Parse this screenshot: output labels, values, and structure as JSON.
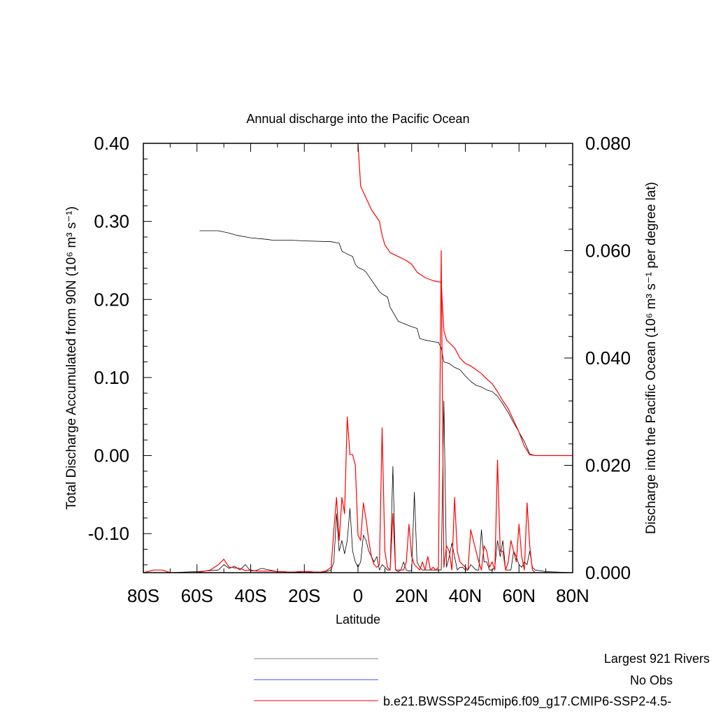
{
  "chart_data": {
    "type": "line",
    "title": "Annual discharge into the Pacific Ocean",
    "xlabel": "Latitude",
    "ylabel_left": "Total Discharge Accumulated from 90N (10⁶ m³ s⁻¹)",
    "ylabel_right": "Discharge into the Pacific Ocean (10⁶ m³ s⁻¹ per degree lat)",
    "xlim": [
      -80,
      80
    ],
    "ylim_left": [
      -0.15,
      0.4
    ],
    "ylim_right": [
      0.0,
      0.08
    ],
    "x_ticks": [
      -80,
      -60,
      -40,
      -20,
      0,
      20,
      40,
      60,
      80
    ],
    "x_tick_labels": [
      "80S",
      "60S",
      "40S",
      "20S",
      "0",
      "20N",
      "40N",
      "60N",
      "80N"
    ],
    "y_left_ticks": [
      -0.1,
      0.0,
      0.1,
      0.2,
      0.3,
      0.4
    ],
    "y_left_tick_labels": [
      "-0.10",
      "0.00",
      "0.10",
      "0.20",
      "0.30",
      "0.40"
    ],
    "y_right_ticks": [
      0.0,
      0.02,
      0.04,
      0.06,
      0.08
    ],
    "y_right_tick_labels": [
      "0.000",
      "0.020",
      "0.040",
      "0.060",
      "0.080"
    ],
    "grid": false,
    "legend_placement": "bottom-right",
    "series": [
      {
        "name": "Largest 921 Rivers",
        "color": "#000000",
        "axis": "left",
        "kind": "accumulated",
        "x": [
          -59,
          -52,
          -48,
          -45,
          -40,
          -34,
          -32,
          -26,
          -20,
          -10,
          -7,
          -6,
          -5,
          -2,
          -1,
          0,
          2,
          3,
          4,
          6,
          8,
          9,
          11,
          12,
          15,
          20,
          22,
          23,
          25,
          28,
          30,
          31,
          32,
          34,
          36,
          38,
          40,
          42,
          44,
          46,
          48,
          50,
          52,
          54,
          56,
          58,
          60,
          62,
          64,
          66,
          80
        ],
        "y": [
          0.288,
          0.288,
          0.285,
          0.282,
          0.279,
          0.277,
          0.276,
          0.276,
          0.275,
          0.274,
          0.272,
          0.262,
          0.26,
          0.255,
          0.245,
          0.241,
          0.238,
          0.235,
          0.23,
          0.22,
          0.21,
          0.207,
          0.203,
          0.19,
          0.172,
          0.165,
          0.163,
          0.15,
          0.148,
          0.146,
          0.145,
          0.138,
          0.12,
          0.118,
          0.113,
          0.11,
          0.102,
          0.095,
          0.09,
          0.088,
          0.084,
          0.082,
          0.076,
          0.066,
          0.055,
          0.042,
          0.03,
          0.018,
          0.002,
          0.0,
          0.0
        ]
      },
      {
        "name": "b.e21.BWSSP245cmip6.f09_g17.CMIP6-SSP2-4.5-",
        "color": "#ff0000",
        "axis": "left",
        "kind": "accumulated",
        "x": [
          0,
          1,
          3,
          5,
          8,
          9,
          10,
          12,
          15,
          18,
          20,
          22,
          25,
          28,
          31,
          32,
          33,
          36,
          38,
          40,
          42,
          44,
          46,
          48,
          50,
          52,
          54,
          56,
          58,
          60,
          62,
          64,
          66,
          80
        ],
        "y": [
          0.4,
          0.345,
          0.33,
          0.315,
          0.3,
          0.282,
          0.27,
          0.26,
          0.255,
          0.25,
          0.245,
          0.235,
          0.228,
          0.224,
          0.222,
          0.16,
          0.148,
          0.138,
          0.125,
          0.118,
          0.115,
          0.11,
          0.105,
          0.098,
          0.092,
          0.082,
          0.07,
          0.06,
          0.045,
          0.03,
          0.012,
          0.001,
          0.0,
          0.0
        ]
      },
      {
        "name": "Largest 921 Rivers",
        "color": "#000000",
        "axis": "right",
        "kind": "per-degree",
        "x": [
          -80,
          -70,
          -60,
          -52,
          -50,
          -48,
          -46,
          -44,
          -42,
          -40,
          -38,
          -36,
          -34,
          -32,
          -30,
          -28,
          -26,
          -24,
          -22,
          -20,
          -18,
          -16,
          -14,
          -12,
          -10,
          -9,
          -8,
          -7,
          -6,
          -5,
          -4,
          -3,
          -2,
          -1,
          0,
          1,
          2,
          3,
          4,
          5,
          6,
          7,
          8,
          9,
          10,
          11,
          12,
          13,
          14,
          15,
          16,
          17,
          18,
          19,
          20,
          21,
          22,
          23,
          24,
          25,
          26,
          27,
          28,
          29,
          30,
          31,
          32,
          33,
          34,
          35,
          36,
          37,
          38,
          39,
          40,
          41,
          42,
          43,
          44,
          45,
          46,
          47,
          48,
          49,
          50,
          51,
          52,
          53,
          54,
          55,
          56,
          57,
          58,
          59,
          60,
          61,
          62,
          63,
          64,
          65,
          66,
          70,
          80
        ],
        "y": [
          0.0,
          0.0,
          0.0002,
          0.0005,
          0.0015,
          0.0008,
          0.0012,
          0.0005,
          0.0015,
          0.0003,
          0.0004,
          0.0008,
          0.0006,
          0.0004,
          0.0002,
          0.0002,
          0.0001,
          0.0001,
          0.0001,
          0.0002,
          0.0001,
          0.0001,
          0.0001,
          0.0002,
          0.0005,
          0.002,
          0.011,
          0.004,
          0.006,
          0.0035,
          0.006,
          0.012,
          0.004,
          0.002,
          0.001,
          0.002,
          0.007,
          0.006,
          0.004,
          0.003,
          0.002,
          0.003,
          0.0005,
          0.0015,
          0.001,
          0.0005,
          0.0005,
          0.0198,
          0.0005,
          0.0002,
          0.0005,
          0.002,
          0.0005,
          0.0003,
          0.0005,
          0.015,
          0.002,
          0.001,
          0.0005,
          0.0005,
          0.0005,
          0.0005,
          0.0005,
          0.0005,
          0.0005,
          0.0005,
          0.032,
          0.001,
          0.003,
          0.0055,
          0.003,
          0.0005,
          0.001,
          0.001,
          0.0005,
          0.0005,
          0.0015,
          0.001,
          0.0005,
          0.0005,
          0.008,
          0.002,
          0.002,
          0.0005,
          0.0005,
          0.001,
          0.006,
          0.003,
          0.006,
          0.0005,
          0.0005,
          0.0005,
          0.004,
          0.003,
          0.0015,
          0.001,
          0.002,
          0.0015,
          0.004,
          0.001,
          0.0005,
          0.0002,
          0.0
        ]
      },
      {
        "name": "b.e21.BWSSP245cmip6.f09_g17.CMIP6-SSP2-4.5-",
        "color": "#ff0000",
        "axis": "right",
        "kind": "per-degree",
        "x": [
          -80,
          -76,
          -73,
          -70,
          -65,
          -60,
          -55,
          -52,
          -51,
          -50,
          -48,
          -47,
          -46,
          -44,
          -42,
          -40,
          -38,
          -36,
          -34,
          -32,
          -30,
          -28,
          -26,
          -24,
          -22,
          -20,
          -18,
          -16,
          -14,
          -12,
          -10,
          -9,
          -8,
          -7,
          -6,
          -5,
          -4,
          -3,
          -2,
          -1,
          0,
          1,
          2,
          3,
          4,
          5,
          6,
          7,
          8,
          9,
          10,
          11,
          12,
          13,
          14,
          15,
          16,
          17,
          18,
          19,
          20,
          21,
          22,
          23,
          24,
          25,
          26,
          27,
          28,
          29,
          30,
          31,
          32,
          33,
          34,
          35,
          36,
          37,
          38,
          39,
          40,
          41,
          42,
          43,
          44,
          45,
          46,
          47,
          48,
          49,
          50,
          51,
          52,
          53,
          54,
          55,
          56,
          57,
          58,
          59,
          60,
          61,
          62,
          63,
          64,
          65,
          66,
          70,
          80
        ],
        "y": [
          0.0,
          0.0005,
          0.0005,
          0.0,
          0.0,
          0.0,
          0.0005,
          0.0015,
          0.002,
          0.0025,
          0.001,
          0.001,
          0.0009,
          0.0008,
          0.0004,
          0.0005,
          0.0003,
          0.0003,
          0.0003,
          0.0003,
          0.0002,
          0.0002,
          0.0001,
          0.0001,
          0.0002,
          0.0002,
          0.0002,
          0.0001,
          0.0001,
          0.0003,
          0.001,
          0.008,
          0.014,
          0.006,
          0.014,
          0.011,
          0.029,
          0.022,
          0.022,
          0.02,
          0.007,
          0.006,
          0.013,
          0.01,
          0.006,
          0.003,
          0.0015,
          0.001,
          0.0015,
          0.027,
          0.004,
          0.001,
          0.0005,
          0.011,
          0.0005,
          0.0005,
          0.0005,
          0.0005,
          0.002,
          0.009,
          0.003,
          0.0015,
          0.001,
          0.0005,
          0.002,
          0.0005,
          0.003,
          0.0005,
          0.001,
          0.0005,
          0.001,
          0.06,
          0.001,
          0.005,
          0.004,
          0.0005,
          0.014,
          0.004,
          0.002,
          0.0015,
          0.001,
          0.0005,
          0.008,
          0.006,
          0.004,
          0.002,
          0.0005,
          0.005,
          0.004,
          0.001,
          0.002,
          0.0005,
          0.021,
          0.004,
          0.004,
          0.0005,
          0.002,
          0.006,
          0.004,
          0.002,
          0.009,
          0.003,
          0.0005,
          0.013,
          0.005,
          0.0005,
          0.0,
          0.0,
          0.0
        ]
      }
    ]
  },
  "legend": {
    "entries": [
      {
        "label": "Largest 921 Rivers",
        "color": "#808080"
      },
      {
        "label": "No Obs",
        "color": "#4444ff"
      },
      {
        "label": "b.e21.BWSSP245cmip6.f09_g17.CMIP6-SSP2-4.5-",
        "color": "#ff0000"
      }
    ]
  }
}
